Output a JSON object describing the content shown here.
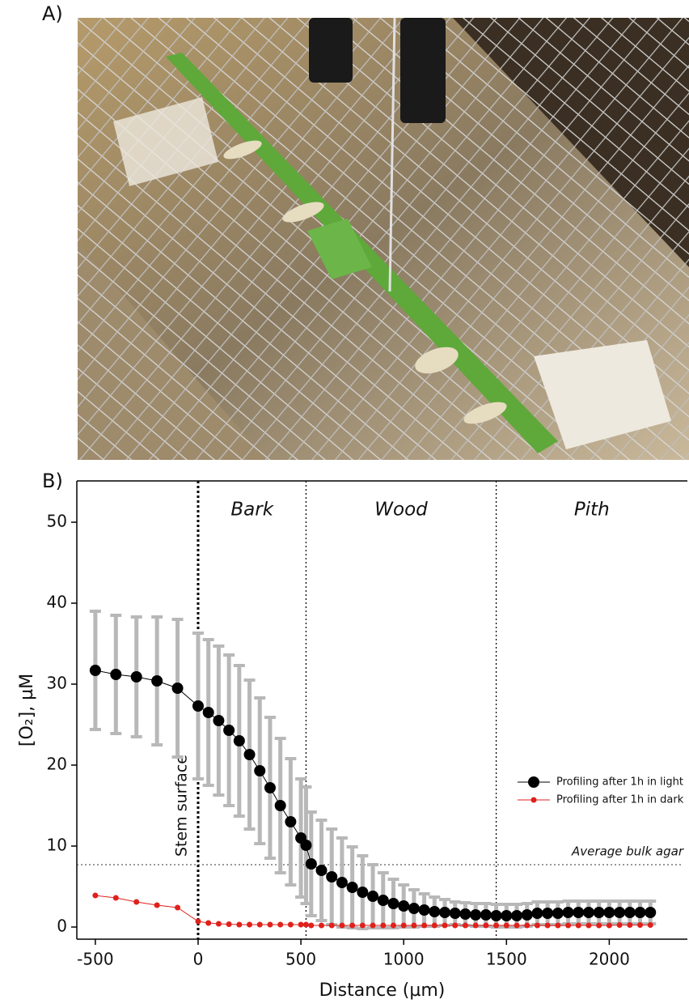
{
  "panels": {
    "a": "A)",
    "b": "B)"
  },
  "chart_data": {
    "type": "line",
    "xlabel": "Distance (µm)",
    "ylabel": "[O₂], µM",
    "xlim": [
      -590,
      2380
    ],
    "ylim": [
      -1.5,
      55.1
    ],
    "xticks": [
      -500,
      0,
      500,
      1000,
      1500,
      2000
    ],
    "yticks": [
      0,
      10,
      20,
      30,
      40,
      50
    ],
    "x": [
      -500,
      -400,
      -300,
      -200,
      -100,
      0,
      50,
      100,
      150,
      200,
      250,
      300,
      350,
      400,
      450,
      500,
      525,
      550,
      600,
      650,
      700,
      750,
      800,
      850,
      900,
      950,
      1000,
      1050,
      1100,
      1150,
      1200,
      1250,
      1300,
      1350,
      1400,
      1450,
      1500,
      1550,
      1600,
      1650,
      1700,
      1750,
      1800,
      1850,
      1900,
      1950,
      2000,
      2050,
      2100,
      2150,
      2200
    ],
    "series": [
      {
        "name": "Profiling after 1h in light",
        "color": "#000000",
        "error_color": "#b8b8b8",
        "values": [
          31.7,
          31.2,
          30.9,
          30.4,
          29.5,
          27.3,
          26.5,
          25.5,
          24.3,
          23,
          21.3,
          19.3,
          17.2,
          15,
          13,
          11,
          10.1,
          7.8,
          7.0,
          6.2,
          5.5,
          4.9,
          4.3,
          3.8,
          3.3,
          2.9,
          2.6,
          2.3,
          2.1,
          1.9,
          1.8,
          1.7,
          1.6,
          1.5,
          1.5,
          1.4,
          1.4,
          1.4,
          1.5,
          1.7,
          1.7,
          1.7,
          1.8,
          1.8,
          1.8,
          1.8,
          1.8,
          1.8,
          1.8,
          1.8,
          1.8
        ],
        "errors": [
          7.3,
          7.3,
          7.4,
          7.9,
          8.5,
          9,
          9,
          9.2,
          9.3,
          9.3,
          9.2,
          9,
          8.7,
          8.3,
          7.8,
          7.3,
          7.2,
          6.4,
          6.2,
          5.9,
          5.5,
          5,
          4.5,
          3.9,
          3.4,
          3,
          2.6,
          2.3,
          2,
          1.8,
          1.6,
          1.4,
          1.4,
          1.4,
          1.4,
          1.4,
          1.4,
          1.4,
          1.4,
          1.4,
          1.4,
          1.4,
          1.4,
          1.4,
          1.4,
          1.4,
          1.4,
          1.4,
          1.4,
          1.4,
          1.4
        ]
      },
      {
        "name": "Profiling after 1h in dark",
        "color": "#e0201b",
        "values": [
          3.9,
          3.6,
          3.1,
          2.7,
          2.4,
          0.7,
          0.5,
          0.4,
          0.35,
          0.3,
          0.3,
          0.3,
          0.3,
          0.3,
          0.3,
          0.3,
          0.3,
          0.2,
          0.2,
          0.2,
          0.2,
          0.2,
          0.2,
          0.2,
          0.2,
          0.2,
          0.2,
          0.2,
          0.2,
          0.2,
          0.2,
          0.2,
          0.2,
          0.2,
          0.2,
          0.2,
          0.2,
          0.2,
          0.2,
          0.2,
          0.2,
          0.2,
          0.2,
          0.2,
          0.2,
          0.2,
          0.2,
          0.25,
          0.25,
          0.25,
          0.25
        ]
      }
    ],
    "vlines": [
      0,
      525,
      1450
    ],
    "regions": [
      "Bark",
      "Wood",
      "Pith"
    ],
    "vline_label": "Stem surface",
    "hline": 7.7,
    "hline_label": "Average bulk agar",
    "legend": "right"
  }
}
